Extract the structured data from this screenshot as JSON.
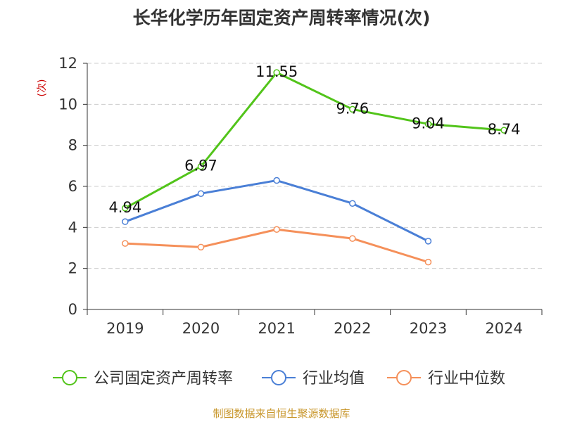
{
  "chart_data": {
    "type": "line",
    "title": "长华化学历年固定资产周转率情况(次)",
    "ylabel": "(次)",
    "xlabel": "",
    "categories": [
      "2019",
      "2020",
      "2021",
      "2022",
      "2023",
      "2024"
    ],
    "ylim": [
      0,
      12
    ],
    "yticks": [
      0,
      2,
      4,
      6,
      8,
      10,
      12
    ],
    "grid": true,
    "legend_position": "bottom",
    "series": [
      {
        "name": "公司固定资产周转率",
        "color": "#52c41a",
        "values": [
          4.94,
          6.97,
          11.55,
          9.76,
          9.04,
          8.74
        ],
        "labels": [
          "4.94",
          "6.97",
          "11.55",
          "9.76",
          "9.04",
          "8.74"
        ]
      },
      {
        "name": "行业均值",
        "color": "#4a7fd6",
        "values": [
          4.28,
          5.65,
          6.29,
          5.17,
          3.33,
          null
        ]
      },
      {
        "name": "行业中位数",
        "color": "#f5905a",
        "values": [
          3.22,
          3.04,
          3.9,
          3.46,
          2.31,
          null
        ]
      }
    ],
    "source": "制图数据来自恒生聚源数据库",
    "colors": {
      "title": "#333333",
      "ylabel": "#cc0000",
      "source": "#c8962a",
      "axis": "#333333",
      "grid": "#cccccc"
    }
  }
}
